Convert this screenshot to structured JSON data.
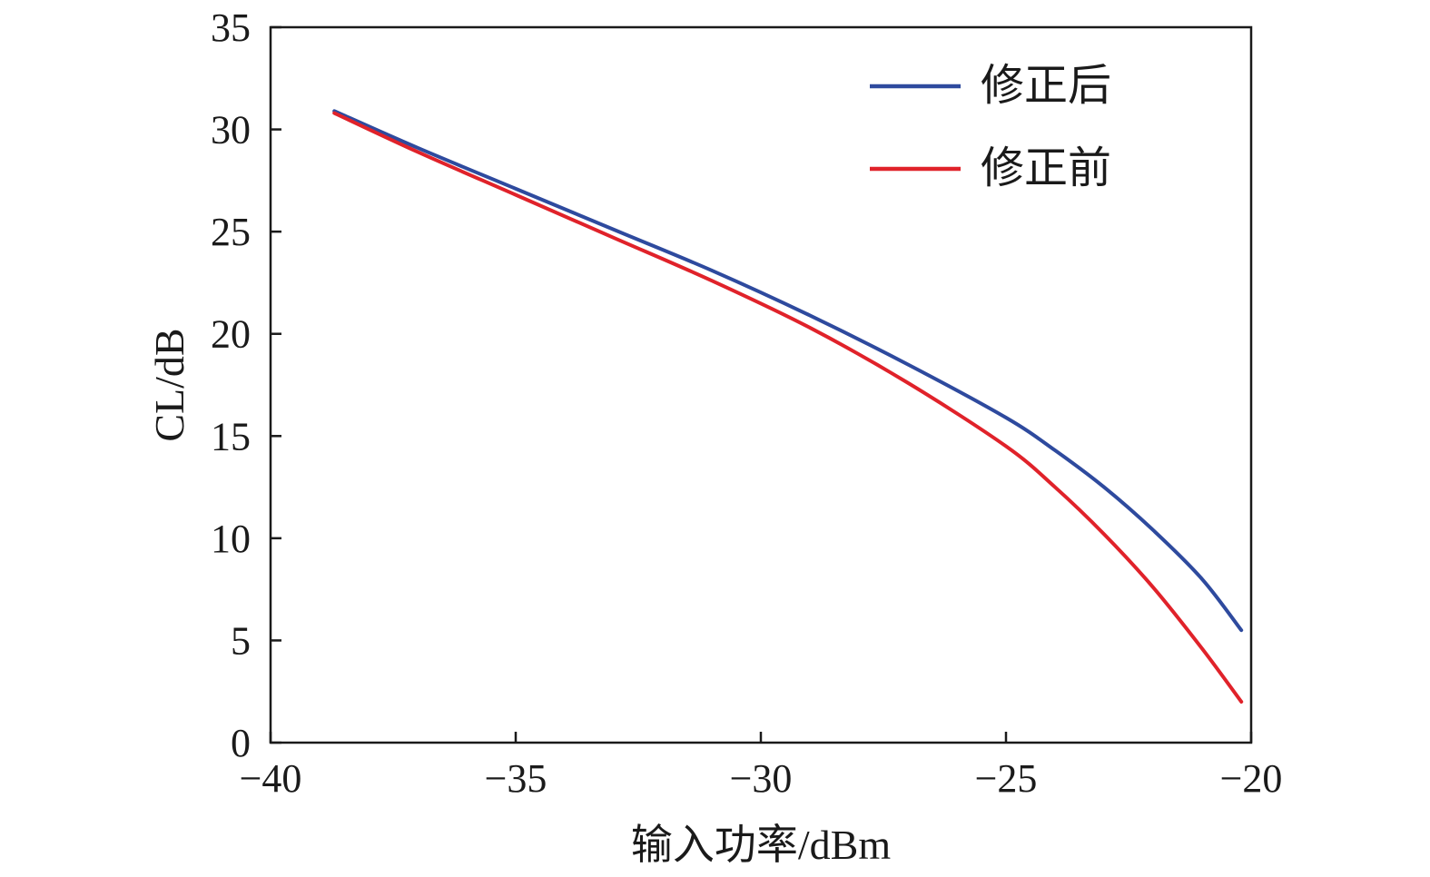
{
  "chart_data": {
    "type": "line",
    "title": "",
    "xlabel": "输入功率/dBm",
    "ylabel": "CL/dB",
    "xlim": [
      -40,
      -20
    ],
    "ylim": [
      0,
      35
    ],
    "xticks": [
      -40,
      -35,
      -30,
      -25,
      -20
    ],
    "yticks": [
      0,
      5,
      10,
      15,
      20,
      25,
      30,
      35
    ],
    "xtick_labels": [
      "−40",
      "−35",
      "−30",
      "−25",
      "−20"
    ],
    "ytick_labels": [
      "0",
      "5",
      "10",
      "15",
      "20",
      "25",
      "30",
      "35"
    ],
    "grid": false,
    "legend_position": "top-right",
    "series": [
      {
        "name": "修正后",
        "color": "#2e4a9e",
        "x": [
          -38.7,
          -37,
          -35,
          -33,
          -31,
          -29,
          -27,
          -25,
          -24,
          -23,
          -22,
          -21,
          -20.2
        ],
        "y": [
          30.9,
          29.1,
          27.1,
          25.1,
          23.1,
          20.9,
          18.5,
          15.9,
          14.3,
          12.5,
          10.4,
          8.0,
          5.5
        ]
      },
      {
        "name": "修正前",
        "color": "#e0222a",
        "x": [
          -38.7,
          -37,
          -35,
          -33,
          -31,
          -29,
          -27,
          -25,
          -24,
          -23,
          -22,
          -21,
          -20.2
        ],
        "y": [
          30.8,
          28.9,
          26.8,
          24.7,
          22.6,
          20.3,
          17.6,
          14.5,
          12.5,
          10.2,
          7.6,
          4.6,
          2.0
        ]
      }
    ]
  }
}
